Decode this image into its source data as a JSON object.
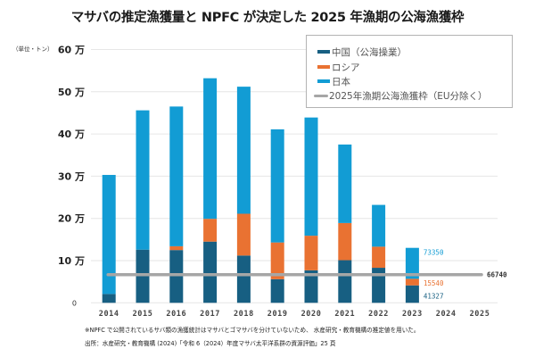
{
  "chart_data": {
    "type": "bar",
    "stacked": true,
    "title": "マサバの推定漁獲量と NPFC が決定した 2025 年漁期の公海漁獲枠",
    "unit_label": "（単位・トン）",
    "xlabel": "",
    "ylabel": "",
    "ylim": [
      0,
      600000
    ],
    "y_ticks": [
      {
        "value": 0,
        "label": "0"
      },
      {
        "value": 100000,
        "label": "10 万"
      },
      {
        "value": 200000,
        "label": "20 万"
      },
      {
        "value": 300000,
        "label": "30 万"
      },
      {
        "value": 400000,
        "label": "40 万"
      },
      {
        "value": 500000,
        "label": "50 万"
      },
      {
        "value": 600000,
        "label": "60 万"
      }
    ],
    "grid": true,
    "categories": [
      "2014",
      "2015",
      "2016",
      "2017",
      "2018",
      "2019",
      "2020",
      "2021",
      "2022",
      "2023",
      "2024",
      "2025"
    ],
    "series": [
      {
        "name": "中国（公海操業）",
        "color": "#175f82",
        "values": [
          21000,
          126000,
          125000,
          145000,
          112000,
          56000,
          77000,
          101000,
          83000,
          41327,
          null,
          null
        ]
      },
      {
        "name": "ロシア",
        "color": "#e97232",
        "values": [
          0,
          0,
          9000,
          54000,
          99000,
          87000,
          82000,
          88000,
          50000,
          15540,
          null,
          null
        ]
      },
      {
        "name": "日本",
        "color": "#129cd4",
        "values": [
          282000,
          330000,
          331000,
          333000,
          301000,
          268000,
          280000,
          186000,
          99000,
          73350,
          null,
          null
        ]
      }
    ],
    "reference_line": {
      "name": "2025年漁期公海漁獲枠（EU分除く）",
      "value": 66740,
      "label": "66740",
      "color": "#a6a6a6",
      "from": "2014",
      "to": "2025"
    },
    "data_labels": [
      {
        "category": "2023",
        "series": "日本",
        "text": "73350",
        "color": "#129cd4"
      },
      {
        "category": "2023",
        "series": "ロシア",
        "text": "15540",
        "color": "#e97232"
      },
      {
        "category": "2023",
        "series": "中国（公海操業）",
        "text": "41327",
        "color": "#175f82"
      }
    ],
    "legend": {
      "position": "top-right",
      "items": [
        {
          "label": "中国（公海操業）",
          "color": "#175f82",
          "kind": "bar"
        },
        {
          "label": "ロシア",
          "color": "#e97232",
          "kind": "bar"
        },
        {
          "label": "日本",
          "color": "#129cd4",
          "kind": "bar"
        },
        {
          "label": "2025年漁期公海漁獲枠（EU分除く）",
          "color": "#a6a6a6",
          "kind": "line"
        }
      ]
    }
  },
  "footnotes": [
    "※NPFC で公開されているサバ類の漁獲統計はマサバとゴマサバを分けていないため、 水産研究・教育機構の推定値を用いた。",
    "出所：水産研究・教育機構 (2024)「令和 6（2024）年度マサバ太平洋系群の資源評価」25 頁"
  ]
}
